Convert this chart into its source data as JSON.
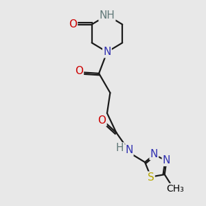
{
  "bg_color": "#e8e8e8",
  "atom_colors": {
    "C": "#000000",
    "N": "#3030b0",
    "NH": "#607878",
    "O": "#cc0000",
    "S": "#b8a800"
  },
  "bond_color": "#1a1a1a",
  "font_size_atoms": 11,
  "font_size_methyl": 10
}
